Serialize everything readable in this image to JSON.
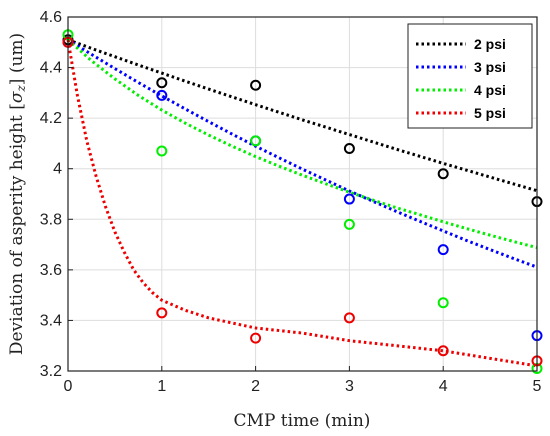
{
  "chart_data": {
    "type": "scatter",
    "xlabel": "CMP time (min)",
    "ylabel_main": "Deviation of asperity height [",
    "ylabel_sym": "σ",
    "ylabel_sub": "z",
    "ylabel_tail": "] (um)",
    "xlim": [
      0,
      5
    ],
    "ylim": [
      3.2,
      4.6
    ],
    "x_ticks": [
      0,
      1,
      2,
      3,
      4,
      5
    ],
    "x_tick_labels": [
      "0",
      "1",
      "2",
      "3",
      "4",
      "5"
    ],
    "y_ticks": [
      3.2,
      3.4,
      3.6,
      3.8,
      4.0,
      4.2,
      4.4,
      4.6
    ],
    "y_tick_labels": [
      "3.2",
      "3.4",
      "3.6",
      "3.8",
      "4",
      "4.2",
      "4.4",
      "4.6"
    ],
    "grid": true,
    "legend_position": "top-right",
    "series": [
      {
        "name": "2 psi",
        "color": "#000000",
        "markers": {
          "x": [
            0,
            1,
            2,
            3,
            4,
            5
          ],
          "y": [
            4.51,
            4.34,
            4.33,
            4.08,
            3.98,
            3.87
          ]
        },
        "fit": {
          "x": [
            0,
            0.25,
            0.5,
            0.75,
            1,
            1.25,
            1.5,
            1.75,
            2,
            2.25,
            2.5,
            2.75,
            3,
            3.25,
            3.5,
            3.75,
            4,
            4.25,
            4.5,
            4.75,
            5
          ],
          "y": [
            4.51,
            4.476,
            4.443,
            4.41,
            4.378,
            4.346,
            4.315,
            4.284,
            4.253,
            4.223,
            4.193,
            4.164,
            4.135,
            4.106,
            4.077,
            4.049,
            4.021,
            3.994,
            3.967,
            3.94,
            3.913
          ]
        }
      },
      {
        "name": "3 psi",
        "color": "#0000ff",
        "markers": {
          "x": [
            0,
            1,
            2,
            3,
            4,
            5
          ],
          "y": [
            4.5,
            4.29,
            4.11,
            3.88,
            3.68,
            3.34
          ]
        },
        "fit": {
          "x": [
            0,
            0.25,
            0.5,
            0.75,
            1,
            1.25,
            1.5,
            1.75,
            2,
            2.25,
            2.5,
            2.75,
            3,
            3.25,
            3.5,
            3.75,
            4,
            4.25,
            4.5,
            4.75,
            5
          ],
          "y": [
            4.51,
            4.452,
            4.396,
            4.341,
            4.288,
            4.236,
            4.186,
            4.137,
            4.089,
            4.043,
            3.998,
            3.955,
            3.912,
            3.871,
            3.831,
            3.792,
            3.754,
            3.716,
            3.68,
            3.645,
            3.611
          ]
        }
      },
      {
        "name": "4 psi",
        "color": "#00ee00",
        "markers": {
          "x": [
            0,
            1,
            2,
            3,
            4,
            5
          ],
          "y": [
            4.53,
            4.07,
            4.11,
            3.78,
            3.47,
            3.21
          ]
        },
        "fit": {
          "x": [
            0,
            0.25,
            0.5,
            0.75,
            1,
            1.25,
            1.5,
            1.75,
            2,
            2.25,
            2.5,
            2.75,
            3,
            3.25,
            3.5,
            3.75,
            4,
            4.25,
            4.5,
            4.75,
            5
          ],
          "y": [
            4.51,
            4.427,
            4.355,
            4.29,
            4.232,
            4.18,
            4.133,
            4.089,
            4.048,
            4.01,
            3.974,
            3.94,
            3.907,
            3.876,
            3.846,
            3.818,
            3.79,
            3.763,
            3.737,
            3.712,
            3.688
          ]
        }
      },
      {
        "name": "5 psi",
        "color": "#ee0000",
        "markers": {
          "x": [
            0,
            1,
            2,
            3,
            4,
            5
          ],
          "y": [
            4.5,
            3.43,
            3.33,
            3.41,
            3.28,
            3.24
          ]
        },
        "fit": {
          "x": [
            0,
            0.1,
            0.2,
            0.3,
            0.4,
            0.5,
            0.6,
            0.7,
            0.8,
            0.9,
            1,
            1.25,
            1.5,
            1.75,
            2,
            2.5,
            3,
            3.5,
            4,
            4.5,
            5
          ],
          "y": [
            4.51,
            4.29,
            4.11,
            3.97,
            3.85,
            3.75,
            3.67,
            3.6,
            3.55,
            3.51,
            3.48,
            3.44,
            3.41,
            3.39,
            3.37,
            3.35,
            3.32,
            3.3,
            3.28,
            3.25,
            3.22
          ]
        }
      }
    ]
  }
}
